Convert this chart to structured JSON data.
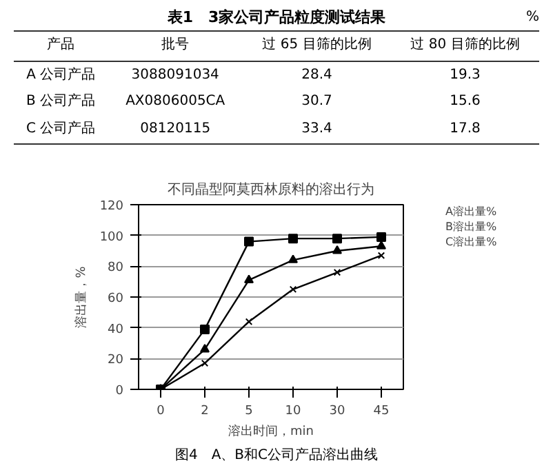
{
  "chart_data": [
    {
      "type": "other",
      "title": "表1　3家公司产品粒度测试结果",
      "annotations": [
        "%",
        "产品",
        "批号",
        "过 65 目筛的比例",
        "过 80 目筛的比例",
        "A 公司产品",
        "3088091034",
        "28.4",
        "19.3",
        "B 公司产品",
        "AX0806005CA",
        "30.7",
        "15.6",
        "C 公司产品",
        "08120115",
        "33.4",
        "17.8"
      ]
    },
    {
      "type": "line",
      "title": "不同晶型阿莫西林原料的溶出行为",
      "xlabel": "溶出时间，min",
      "ylabel": "溶出量，%",
      "categories": [
        "0",
        "2",
        "5",
        "10",
        "30",
        "45"
      ],
      "ylim": [
        0,
        120
      ],
      "yticks": [
        0,
        20,
        40,
        60,
        80,
        100,
        120
      ],
      "grid": "y",
      "legend": "right",
      "annotations": [
        "图4　A、B和C公司产品溶出曲线"
      ],
      "series": [
        {
          "name": "A溶出量%",
          "color": "#000000",
          "marker": "square",
          "values": [
            0,
            39,
            96,
            98,
            98,
            99
          ]
        },
        {
          "name": "B溶出量%",
          "color": "#000000",
          "marker": "triangle",
          "values": [
            0,
            26,
            71,
            84,
            90,
            93
          ]
        },
        {
          "name": "C溶出量%",
          "color": "#000000",
          "marker": "cross",
          "values": [
            0,
            17,
            44,
            65,
            76,
            87
          ]
        }
      ]
    }
  ]
}
